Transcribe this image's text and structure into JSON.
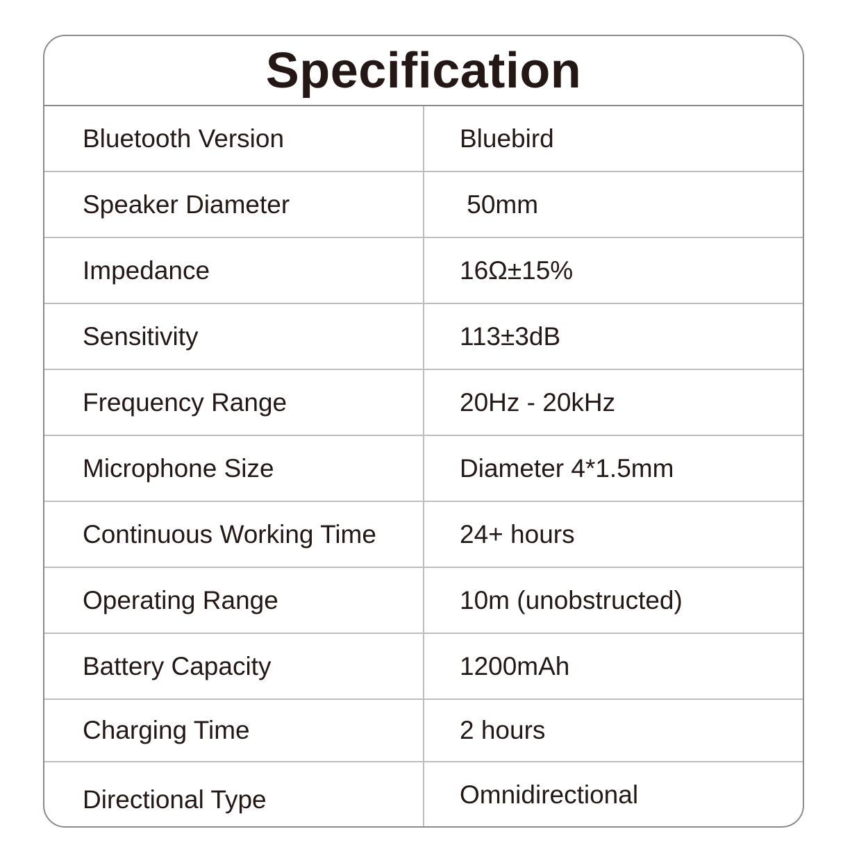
{
  "title": "Specification",
  "rows": [
    {
      "label": "Bluetooth Version",
      "value": "Bluebird"
    },
    {
      "label": "Speaker Diameter",
      "value": " 50mm"
    },
    {
      "label": "Impedance",
      "value": "16Ω±15%"
    },
    {
      "label": "Sensitivity",
      "value": "113±3dB"
    },
    {
      "label": "Frequency Range",
      "value": "20Hz - 20kHz"
    },
    {
      "label": "Microphone Size",
      "value": "Diameter 4*1.5mm"
    },
    {
      "label": "Continuous Working Time",
      "value": "24+ hours"
    },
    {
      "label": "Operating Range",
      "value": "10m (unobstructed)"
    },
    {
      "label": "Battery Capacity",
      "value": "1200mAh"
    },
    {
      "label": "Charging Time",
      "value": "2 hours"
    },
    {
      "label": "Directional Type",
      "value": "Omnidirectional"
    }
  ]
}
